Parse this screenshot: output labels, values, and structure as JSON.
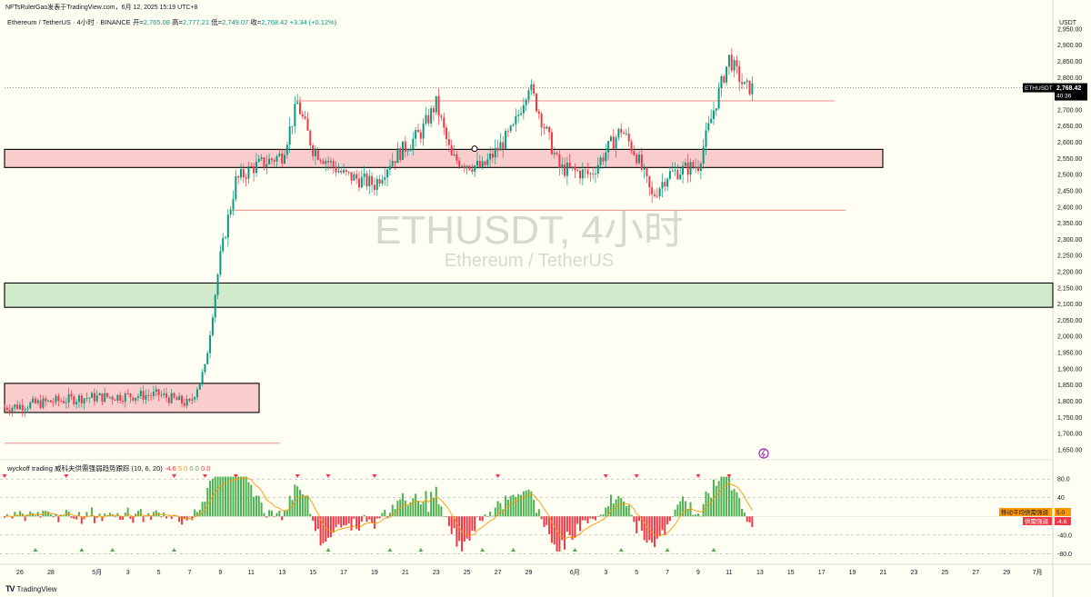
{
  "header": {
    "published": "NFTsRulerGao发表于TradingView.com，6月 12, 2025 15:19 UTC+8"
  },
  "symbol_bar": {
    "name": "Ethereum / TetherUS · 4小时 · BINANCE",
    "open_label": "开=",
    "open": "2,765.08",
    "high_label": "高=",
    "high": "2,777.21",
    "low_label": "低=",
    "low": "2,749.07",
    "close_label": "收=",
    "close": "2,768.42",
    "change": "+3.34 (+0.12%)"
  },
  "watermark": {
    "title": "ETHUSDT, 4小时",
    "subtitle": "Ethereum / TetherUS"
  },
  "price_axis": {
    "currency": "USDT",
    "ticks": [
      "2,950.00",
      "2,900.00",
      "2,850.00",
      "2,800.00",
      "2,750.00",
      "2,700.00",
      "2,650.00",
      "2,600.00",
      "2,550.00",
      "2,500.00",
      "2,450.00",
      "2,400.00",
      "2,350.00",
      "2,300.00",
      "2,250.00",
      "2,200.00",
      "2,150.00",
      "2,100.00",
      "2,050.00",
      "2,000.00",
      "1,950.00",
      "1,900.00",
      "1,850.00",
      "1,800.00",
      "1,750.00",
      "1,700.00",
      "1,650.00"
    ],
    "last_tag_symbol": "ETHUSDT",
    "last_tag_price": "2,768.42",
    "last_tag_countdown": "40:36"
  },
  "indicator": {
    "label": "wyckoff trading 威科夫供需强弱趋势跟踪 (10, 6, 20)",
    "v1": "-4.6",
    "v2": "5.0",
    "v3": "0.0",
    "v4": "0.0",
    "axis_ticks": [
      "80.0",
      "40",
      "-40.0",
      "-80.0"
    ],
    "tag_ma_label": "移动平均供需强弱",
    "tag_ma_value": "5.0",
    "tag_sd_label": "供需强弱",
    "tag_sd_value": "-4.6"
  },
  "time_axis": {
    "ticks": [
      "26",
      "28",
      "5月",
      "3",
      "5",
      "7",
      "9",
      "11",
      "13",
      "15",
      "17",
      "19",
      "21",
      "23",
      "25",
      "27",
      "29",
      "6月",
      "3",
      "5",
      "7",
      "9",
      "11",
      "13",
      "15",
      "17",
      "19",
      "21",
      "23",
      "25",
      "27",
      "29",
      "7月"
    ]
  },
  "footer": {
    "logo": "TV",
    "brand": "TradingView"
  },
  "colors": {
    "background": "#fffef3",
    "up": "#089981",
    "down": "#f23645",
    "supply_zone": "#f8c4c4",
    "demand_zone": "#c9e6c4",
    "ma_line": "#ff9800"
  },
  "chart_data": {
    "type": "candlestick",
    "series_name": "ETHUSDT 4小时",
    "ylim": [
      1630,
      2975
    ],
    "close_path": [
      {
        "x": "2025-04-25",
        "y": 1780
      },
      {
        "x": "2025-04-30",
        "y": 1810
      },
      {
        "x": "2025-05-05",
        "y": 1820
      },
      {
        "x": "2025-05-07",
        "y": 1790
      },
      {
        "x": "2025-05-08",
        "y": 1900
      },
      {
        "x": "2025-05-09",
        "y": 2250
      },
      {
        "x": "2025-05-10",
        "y": 2480
      },
      {
        "x": "2025-05-11",
        "y": 2520
      },
      {
        "x": "2025-05-13",
        "y": 2560
      },
      {
        "x": "2025-05-14",
        "y": 2720
      },
      {
        "x": "2025-05-15",
        "y": 2580
      },
      {
        "x": "2025-05-17",
        "y": 2500
      },
      {
        "x": "2025-05-19",
        "y": 2470
      },
      {
        "x": "2025-05-20",
        "y": 2540
      },
      {
        "x": "2025-05-22",
        "y": 2630
      },
      {
        "x": "2025-05-23",
        "y": 2720
      },
      {
        "x": "2025-05-24",
        "y": 2550
      },
      {
        "x": "2025-05-26",
        "y": 2520
      },
      {
        "x": "2025-05-28",
        "y": 2640
      },
      {
        "x": "2025-05-29",
        "y": 2780
      },
      {
        "x": "2025-05-31",
        "y": 2520
      },
      {
        "x": "2025-06-02",
        "y": 2500
      },
      {
        "x": "2025-06-04",
        "y": 2640
      },
      {
        "x": "2025-06-05",
        "y": 2560
      },
      {
        "x": "2025-06-06",
        "y": 2430
      },
      {
        "x": "2025-06-07",
        "y": 2500
      },
      {
        "x": "2025-06-09",
        "y": 2530
      },
      {
        "x": "2025-06-10",
        "y": 2700
      },
      {
        "x": "2025-06-11",
        "y": 2860
      },
      {
        "x": "2025-06-12",
        "y": 2768.42
      }
    ],
    "zones": [
      {
        "type": "supply",
        "top": 2578,
        "bottom": 2522
      },
      {
        "type": "demand",
        "top": 2165,
        "bottom": 2090
      },
      {
        "type": "supply",
        "top": 1855,
        "bottom": 1765
      }
    ],
    "levels": [
      2728,
      2390,
      1670
    ],
    "indicator_ylim": [
      -85,
      90
    ]
  }
}
